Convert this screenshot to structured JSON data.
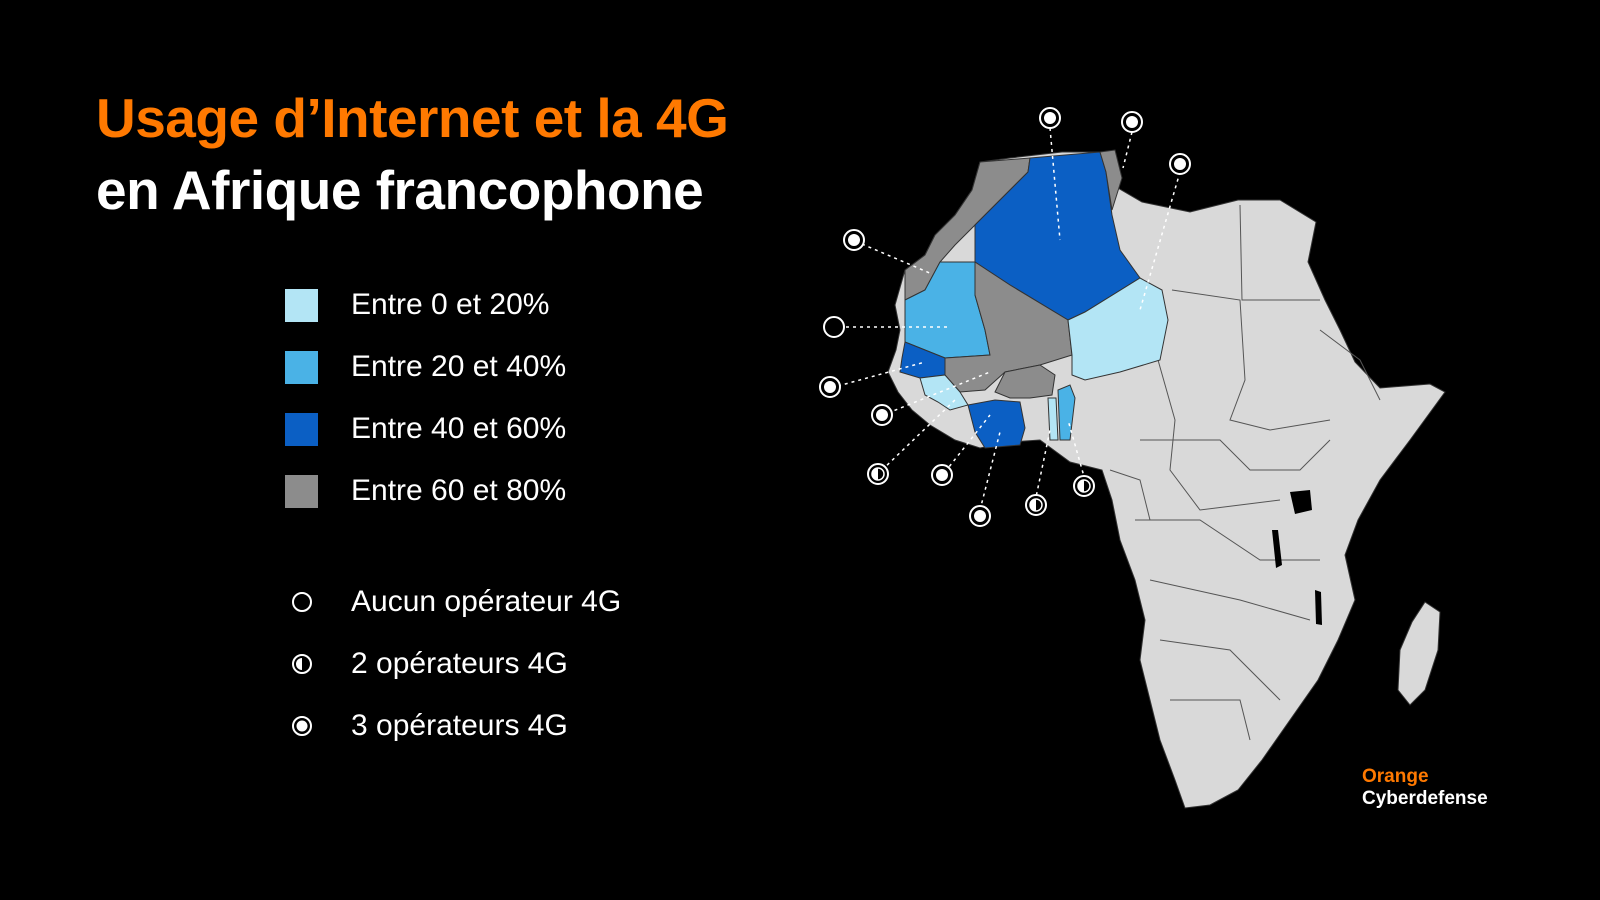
{
  "title": {
    "line1": "Usage d’Internet et la 4G",
    "line2": "en Afrique francophone"
  },
  "legend": {
    "usage": [
      {
        "label": "Entre 0 et 20%",
        "color": "#b3e5f5"
      },
      {
        "label": "Entre 20 et 40%",
        "color": "#4ab2e6"
      },
      {
        "label": "Entre 40 et 60%",
        "color": "#0b5fc4"
      },
      {
        "label": "Entre 60 et 80%",
        "color": "#8c8c8c"
      }
    ],
    "operators": [
      {
        "label": "Aucun opérateur 4G",
        "icon": "empty-circle-icon"
      },
      {
        "label": "2 opérateurs 4G",
        "icon": "half-circle-icon"
      },
      {
        "label": "3 opérateurs 4G",
        "icon": "dot-circle-icon"
      }
    ]
  },
  "colors": {
    "background": "#000000",
    "accent": "#ff7900",
    "other_countries": "#d9d9d9",
    "borders": "#333333"
  },
  "map": {
    "country_categories": {
      "algeria": "Entre 40 et 60%",
      "tunisia": "Entre 60 et 80%",
      "morocco": "Entre 60 et 80%",
      "mauritania": "Entre 20 et 40%",
      "mali": "Entre 60 et 80%",
      "niger": "Entre 0 et 20%",
      "senegal": "Entre 40 et 60%",
      "guinea": "Entre 0 et 20%",
      "burkina_faso": "Entre 60 et 80%",
      "cote_divoire": "Entre 40 et 60%",
      "togo": "Entre 0 et 20%",
      "benin": "Entre 20 et 40%"
    },
    "operator_markers": [
      {
        "country": "algeria",
        "operators": "3 opérateurs 4G"
      },
      {
        "country": "tunisia",
        "operators": "3 opérateurs 4G"
      },
      {
        "country": "niger",
        "operators": "3 opérateurs 4G"
      },
      {
        "country": "morocco",
        "operators": "3 opérateurs 4G"
      },
      {
        "country": "mauritania",
        "operators": "Aucun opérateur 4G"
      },
      {
        "country": "senegal",
        "operators": "3 opérateurs 4G"
      },
      {
        "country": "mali",
        "operators": "3 opérateurs 4G"
      },
      {
        "country": "guinea",
        "operators": "2 opérateurs 4G"
      },
      {
        "country": "guinea_interior",
        "operators": "3 opérateurs 4G"
      },
      {
        "country": "cote_divoire",
        "operators": "3 opérateurs 4G"
      },
      {
        "country": "burkina_faso",
        "operators": "2 opérateurs 4G"
      },
      {
        "country": "benin",
        "operators": "2 opérateurs 4G"
      }
    ]
  },
  "brand": {
    "line1": "Orange",
    "line2": "Cyberdefense"
  }
}
